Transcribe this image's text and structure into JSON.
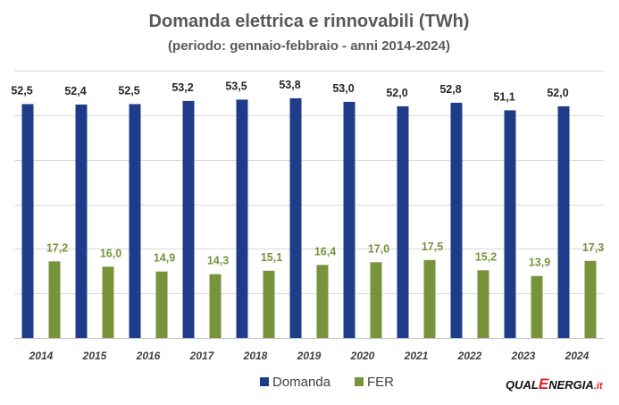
{
  "chart_data": {
    "type": "bar",
    "title": "Domanda elettrica e rinnovabili (TWh)",
    "subtitle": "(periodo: gennaio-febbraio - anni 2014-2024)",
    "categories": [
      "2014",
      "2015",
      "2016",
      "2017",
      "2018",
      "2019",
      "2020",
      "2021",
      "2022",
      "2023",
      "2024"
    ],
    "series": [
      {
        "name": "Domanda",
        "color": "#1f3c88",
        "values": [
          52.5,
          52.4,
          52.5,
          53.2,
          53.5,
          53.8,
          53.0,
          52.0,
          52.8,
          51.1,
          52.0
        ],
        "labels": [
          "52,5",
          "52,4",
          "52,5",
          "53,2",
          "53,5",
          "53,8",
          "53,0",
          "52,0",
          "52,8",
          "51,1",
          "52,0"
        ]
      },
      {
        "name": "FER",
        "color": "#77933c",
        "values": [
          17.2,
          16.0,
          14.9,
          14.3,
          15.1,
          16.4,
          17.0,
          17.5,
          15.2,
          13.9,
          17.3
        ],
        "labels": [
          "17,2",
          "16,0",
          "14,9",
          "14,3",
          "15,1",
          "16,4",
          "17,0",
          "17,5",
          "15,2",
          "13,9",
          "17,3"
        ]
      }
    ],
    "ylim": [
      0,
      60
    ],
    "grid": true,
    "legend_position": "bottom"
  },
  "logo": {
    "part1": "QUAL",
    "part2": "E",
    "part3": "NERGIA",
    "part4": ".it"
  }
}
